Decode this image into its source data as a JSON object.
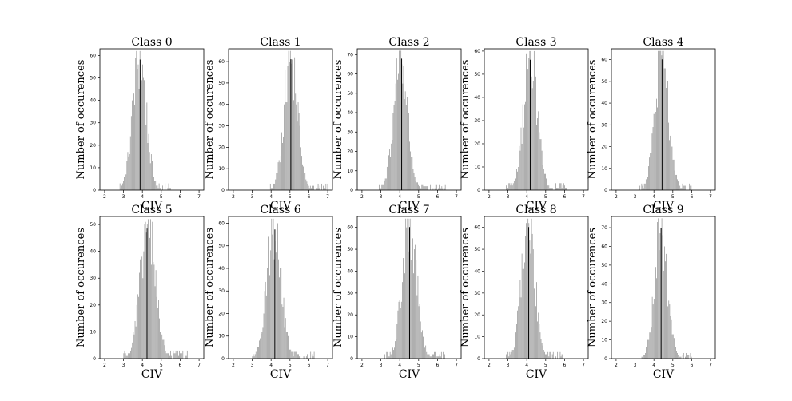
{
  "chart_data": [
    {
      "type": "bar",
      "title": "Class 0",
      "xlabel": "CIV",
      "ylabel": "Number of occurences",
      "xlim": [
        1.75,
        7.25
      ],
      "ylim": [
        0,
        63
      ],
      "xticks": [
        2,
        3,
        4,
        5,
        6,
        7
      ],
      "yticks": [
        0,
        10,
        20,
        30,
        40,
        50,
        60
      ],
      "bin_width": 0.046,
      "mean": 3.85,
      "sd": 0.36,
      "peak": 60,
      "support": [
        2.8,
        5.5
      ],
      "mean_line": 3.88,
      "bar_color": "#8c8c8c"
    },
    {
      "type": "bar",
      "title": "Class 1",
      "xlabel": "CIV",
      "ylabel": "Number of occurences",
      "xlim": [
        1.75,
        7.25
      ],
      "ylim": [
        0,
        66
      ],
      "xticks": [
        2,
        3,
        4,
        5,
        6,
        7
      ],
      "yticks": [
        0,
        10,
        20,
        30,
        40,
        50,
        60
      ],
      "bin_width": 0.046,
      "mean": 5.05,
      "sd": 0.36,
      "peak": 63,
      "support": [
        3.9,
        7.0
      ],
      "mean_line": 5.05,
      "bar_color": "#8c8c8c"
    },
    {
      "type": "bar",
      "title": "Class 2",
      "xlabel": "CIV",
      "ylabel": "Number of occurences",
      "xlim": [
        1.75,
        7.25
      ],
      "ylim": [
        0,
        73
      ],
      "xticks": [
        2,
        3,
        4,
        5,
        6,
        7
      ],
      "yticks": [
        0,
        10,
        20,
        30,
        40,
        50,
        60,
        70
      ],
      "bin_width": 0.046,
      "mean": 4.05,
      "sd": 0.36,
      "peak": 70,
      "support": [
        2.9,
        6.4
      ],
      "mean_line": 4.1,
      "bar_color": "#8c8c8c"
    },
    {
      "type": "bar",
      "title": "Class 3",
      "xlabel": "CIV",
      "ylabel": "Number of occurences",
      "xlim": [
        1.75,
        7.25
      ],
      "ylim": [
        0,
        61
      ],
      "xticks": [
        2,
        3,
        4,
        5,
        6,
        7
      ],
      "yticks": [
        0,
        10,
        20,
        30,
        40,
        50,
        60
      ],
      "bin_width": 0.046,
      "mean": 4.2,
      "sd": 0.37,
      "peak": 58,
      "support": [
        2.9,
        6.1
      ],
      "mean_line": 4.18,
      "bar_color": "#8c8c8c"
    },
    {
      "type": "bar",
      "title": "Class 4",
      "xlabel": "CIV",
      "ylabel": "Number of occurences",
      "xlim": [
        1.75,
        7.25
      ],
      "ylim": [
        0,
        65
      ],
      "xticks": [
        2,
        3,
        4,
        5,
        6,
        7
      ],
      "yticks": [
        0,
        10,
        20,
        30,
        40,
        50,
        60
      ],
      "bin_width": 0.046,
      "mean": 4.42,
      "sd": 0.36,
      "peak": 62,
      "support": [
        3.2,
        6.0
      ],
      "mean_line": 4.43,
      "bar_color": "#8c8c8c"
    },
    {
      "type": "bar",
      "title": "Class 5",
      "xlabel": "CIV",
      "ylabel": "Number of occurences",
      "xlim": [
        1.75,
        7.25
      ],
      "ylim": [
        0,
        53
      ],
      "xticks": [
        2,
        3,
        4,
        5,
        6,
        7
      ],
      "yticks": [
        0,
        10,
        20,
        30,
        40,
        50
      ],
      "bin_width": 0.046,
      "mean": 4.3,
      "sd": 0.4,
      "peak": 50,
      "support": [
        3.0,
        6.4
      ],
      "mean_line": 4.25,
      "bar_color": "#8c8c8c"
    },
    {
      "type": "bar",
      "title": "Class 6",
      "xlabel": "CIV",
      "ylabel": "Number of occurences",
      "xlim": [
        1.75,
        7.25
      ],
      "ylim": [
        0,
        63
      ],
      "xticks": [
        2,
        3,
        4,
        5,
        6,
        7
      ],
      "yticks": [
        0,
        10,
        20,
        30,
        40,
        50,
        60
      ],
      "bin_width": 0.046,
      "mean": 4.15,
      "sd": 0.38,
      "peak": 59,
      "support": [
        3.0,
        6.3
      ],
      "mean_line": 4.2,
      "bar_color": "#8c8c8c"
    },
    {
      "type": "bar",
      "title": "Class 7",
      "xlabel": "CIV",
      "ylabel": "Number of occurences",
      "xlim": [
        1.75,
        7.25
      ],
      "ylim": [
        0,
        65
      ],
      "xticks": [
        2,
        3,
        4,
        5,
        6,
        7
      ],
      "yticks": [
        0,
        10,
        20,
        30,
        40,
        50,
        60
      ],
      "bin_width": 0.046,
      "mean": 4.52,
      "sd": 0.38,
      "peak": 62,
      "support": [
        3.2,
        6.4
      ],
      "mean_line": 4.52,
      "bar_color": "#8c8c8c"
    },
    {
      "type": "bar",
      "title": "Class 8",
      "xlabel": "CIV",
      "ylabel": "Number of occurences",
      "xlim": [
        1.75,
        7.25
      ],
      "ylim": [
        0,
        65
      ],
      "xticks": [
        2,
        3,
        4,
        5,
        6,
        7
      ],
      "yticks": [
        0,
        10,
        20,
        30,
        40,
        50,
        60
      ],
      "bin_width": 0.046,
      "mean": 4.08,
      "sd": 0.36,
      "peak": 62,
      "support": [
        2.9,
        5.9
      ],
      "mean_line": 4.1,
      "bar_color": "#8c8c8c"
    },
    {
      "type": "bar",
      "title": "Class 9",
      "xlabel": "CIV",
      "ylabel": "Number of occurences",
      "xlim": [
        1.75,
        7.25
      ],
      "ylim": [
        0,
        76
      ],
      "xticks": [
        2,
        3,
        4,
        5,
        6,
        7
      ],
      "yticks": [
        0,
        10,
        20,
        30,
        40,
        50,
        60,
        70
      ],
      "bin_width": 0.046,
      "mean": 4.38,
      "sd": 0.34,
      "peak": 72,
      "support": [
        3.3,
        6.0
      ],
      "mean_line": 4.38,
      "bar_color": "#8c8c8c"
    }
  ]
}
